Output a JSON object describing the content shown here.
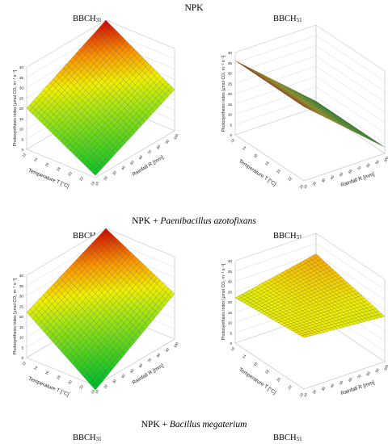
{
  "headings": {
    "npk": "NPK",
    "npk_paeni_prefix": "NPK + ",
    "npk_paeni_italic": "Paenibacillus azotofixans",
    "npk_bac_prefix": "NPK + ",
    "npk_bac_italic": "Bacillus megaterium"
  },
  "stages": {
    "bbch": "BBCH",
    "s31": "31",
    "s51": "51"
  },
  "axes": {
    "z_label": "Photosynthesis index [µmol CO₂ m⁻² s⁻¹]",
    "t_label": "Temperature T [°C]",
    "r_label": "Rainfall R [mm]",
    "z_ticks": [
      "0",
      "5",
      "10",
      "15",
      "20",
      "25",
      "30",
      "35",
      "40"
    ],
    "t_ticks": [
      "12",
      "14",
      "16",
      "18",
      "20",
      "22",
      "24"
    ],
    "r_ticks": [
      "10",
      "20",
      "30",
      "40",
      "50",
      "60",
      "70",
      "80",
      "90",
      "100"
    ]
  },
  "chart_data": [
    {
      "type": "surface",
      "panel": "NPK BBCH31",
      "xlabel": "Temperature T [°C]",
      "ylabel": "Rainfall R [mm]",
      "zlabel": "Photosynthesis index [µmol CO₂ m⁻² s⁻¹]",
      "zlim": [
        0,
        40
      ],
      "corners": {
        "t_low_r_low": 20,
        "t_high_r_low": 1,
        "t_low_r_high": 40,
        "t_high_r_high": 20
      }
    },
    {
      "type": "surface",
      "panel": "NPK BBCH51",
      "xlabel": "Temperature T [°C]",
      "ylabel": "Rainfall R [mm]",
      "zlabel": "Photosynthesis index [µmol CO₂ m⁻² s⁻¹]",
      "zlim": [
        0,
        40
      ],
      "corners": {
        "t_low_r_low": 36,
        "t_high_r_low": 36,
        "t_low_r_high": 3,
        "t_high_r_high": 3
      }
    },
    {
      "type": "surface",
      "panel": "NPK + Paenibacillus azotofixans BBCH31",
      "xlabel": "Temperature T [°C]",
      "ylabel": "Rainfall R [mm]",
      "zlabel": "Photosynthesis index [µmol CO₂ m⁻² s⁻¹]",
      "zlim": [
        0,
        40
      ],
      "corners": {
        "t_low_r_low": 22,
        "t_high_r_low": -2,
        "t_low_r_high": 40,
        "t_high_r_high": 22
      }
    },
    {
      "type": "surface",
      "panel": "NPK + Paenibacillus azotofixans BBCH51",
      "xlabel": "Temperature T [°C]",
      "ylabel": "Rainfall R [mm]",
      "zlabel": "Photosynthesis index [µmol CO₂ m⁻² s⁻¹]",
      "zlim": [
        0,
        40
      ],
      "corners": {
        "t_low_r_low": 22,
        "t_high_r_low": 25,
        "t_low_r_high": 30,
        "t_high_r_high": 22
      }
    }
  ]
}
